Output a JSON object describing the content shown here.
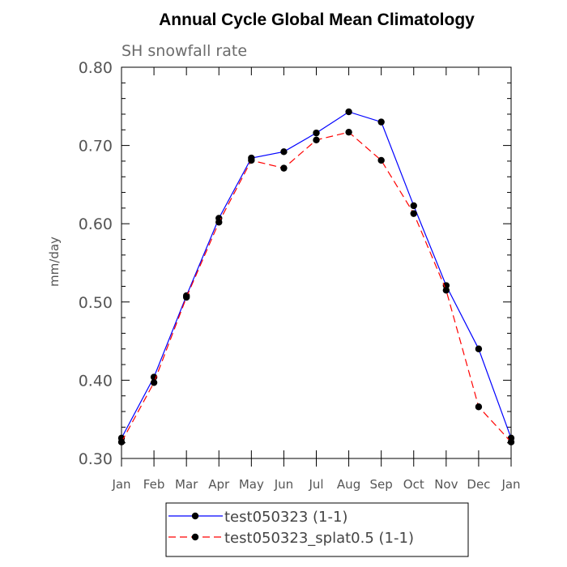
{
  "chart_data": {
    "type": "line",
    "title": "Annual Cycle Global Mean Climatology",
    "subtitle": "SH snowfall rate",
    "xlabel": "",
    "ylabel": "mm/day",
    "categories": [
      "Jan",
      "Feb",
      "Mar",
      "Apr",
      "May",
      "Jun",
      "Jul",
      "Aug",
      "Sep",
      "Oct",
      "Nov",
      "Dec",
      "Jan"
    ],
    "ylim": [
      0.3,
      0.8
    ],
    "yticks": [
      "0.30",
      "0.40",
      "0.50",
      "0.60",
      "0.70",
      "0.80"
    ],
    "series": [
      {
        "name": "test050323 (1-1)",
        "color": "#0000ff",
        "dash": "solid",
        "values": [
          0.326,
          0.404,
          0.508,
          0.607,
          0.684,
          0.692,
          0.716,
          0.743,
          0.73,
          0.623,
          0.521,
          0.44,
          0.326
        ]
      },
      {
        "name": "test050323_splat0.5 (1-1)",
        "color": "#ff0000",
        "dash": "dashed",
        "values": [
          0.321,
          0.397,
          0.506,
          0.602,
          0.681,
          0.671,
          0.707,
          0.717,
          0.681,
          0.613,
          0.515,
          0.366,
          0.321
        ]
      }
    ],
    "legend_position": "bottom"
  }
}
